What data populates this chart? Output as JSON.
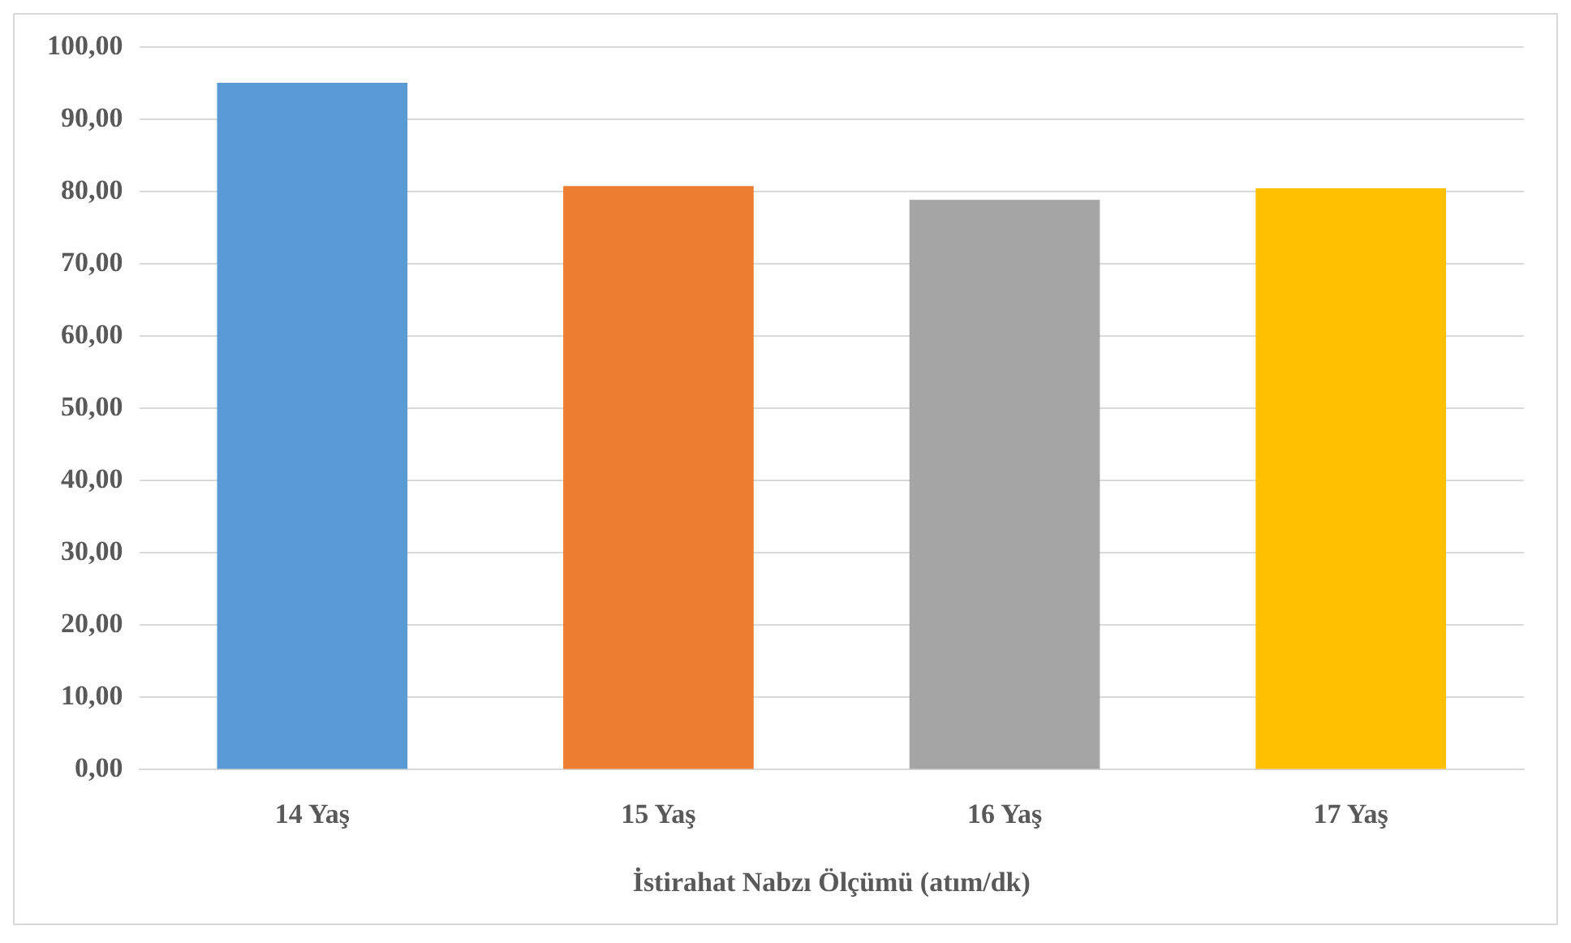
{
  "chart_data": {
    "type": "bar",
    "xlabel": "İstirahat Nabzı Ölçümü (atım/dk)",
    "categories": [
      "14 Yaş",
      "15 Yaş",
      "16 Yaş",
      "17 Yaş"
    ],
    "values": [
      95.1,
      80.8,
      78.9,
      80.5
    ],
    "colors": [
      "#5b9bd5",
      "#ed7d31",
      "#a5a5a5",
      "#ffc000"
    ],
    "ylim": [
      0,
      100
    ],
    "yticks": [
      {
        "value": 0,
        "label": "0,00"
      },
      {
        "value": 10,
        "label": "10,00"
      },
      {
        "value": 20,
        "label": "20,00"
      },
      {
        "value": 30,
        "label": "30,00"
      },
      {
        "value": 40,
        "label": "40,00"
      },
      {
        "value": 50,
        "label": "50,00"
      },
      {
        "value": 60,
        "label": "60,00"
      },
      {
        "value": 70,
        "label": "70,00"
      },
      {
        "value": 80,
        "label": "80,00"
      },
      {
        "value": 90,
        "label": "90,00"
      },
      {
        "value": 100,
        "label": "100,00"
      }
    ],
    "grid": "y",
    "legend": false
  }
}
